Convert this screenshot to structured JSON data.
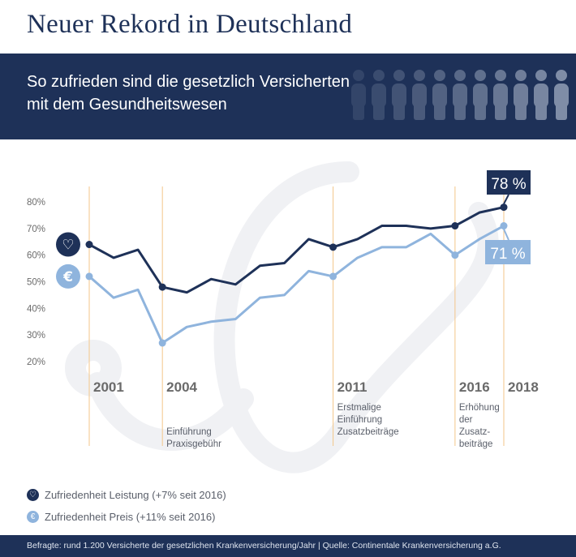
{
  "title": "Neuer Rekord in Deutschland",
  "subtitle": {
    "line1": "So zufrieden sind die gesetzlich Versicherten",
    "line2": "mit dem Gesundheitswesen"
  },
  "colors": {
    "navy": "#1e3158",
    "light_blue": "#8fb4dd",
    "marker": "#f3c68a",
    "axis_text": "#6b6b6b",
    "year_text": "#6a6a6a"
  },
  "chart_data": {
    "type": "line",
    "x": [
      2001,
      2002,
      2003,
      2004,
      2005,
      2006,
      2007,
      2008,
      2009,
      2010,
      2011,
      2012,
      2013,
      2014,
      2015,
      2016,
      2017,
      2018
    ],
    "series": [
      {
        "name": "Zufriedenheit Leistung (+7% seit 2016)",
        "icon": "heart-icon",
        "color": "#1e3158",
        "values": [
          64,
          59,
          62,
          48,
          46,
          51,
          49,
          56,
          57,
          66,
          63,
          66,
          71,
          71,
          70,
          71,
          76,
          78
        ]
      },
      {
        "name": "Zufriedenheit Preis (+11% seit 2016)",
        "icon": "euro-icon",
        "color": "#8fb4dd",
        "values": [
          52,
          44,
          47,
          27,
          33,
          35,
          36,
          44,
          45,
          54,
          52,
          59,
          63,
          63,
          68,
          60,
          66,
          71
        ]
      }
    ],
    "y_ticks": [
      "80%",
      "70%",
      "60%",
      "50%",
      "40%",
      "30%",
      "20%"
    ],
    "ylim": [
      20,
      80
    ],
    "markers": [
      {
        "year": 2001,
        "label": "2001",
        "note": []
      },
      {
        "year": 2004,
        "label": "2004",
        "note": [
          "Einführung",
          "Praxisgebühr"
        ]
      },
      {
        "year": 2011,
        "label": "2011",
        "note": [
          "Erstmalige",
          "Einführung",
          "Zusatzbeiträge"
        ]
      },
      {
        "year": 2016,
        "label": "2016",
        "note": [
          "Erhöhung",
          "der",
          "Zusatz-",
          "beiträge"
        ]
      },
      {
        "year": 2018,
        "label": "2018",
        "note": []
      }
    ],
    "highlighted_points": [
      {
        "series": 0,
        "years": [
          2001,
          2004,
          2011,
          2016,
          2018
        ]
      },
      {
        "series": 1,
        "years": [
          2001,
          2004,
          2011,
          2016,
          2018
        ]
      }
    ],
    "callouts": {
      "leistung": "78 %",
      "preis": "71 %"
    }
  },
  "legend": {
    "leistung": "Zufriedenheit Leistung (+7% seit 2016)",
    "preis": "Zufriedenheit Preis (+11% seit 2016)"
  },
  "icon_glyphs": {
    "euro": "€",
    "heart": "♡"
  },
  "footer": "Befragte: rund 1.200 Versicherte der gesetzlichen Krankenversicherung/Jahr | Quelle: Continentale Krankenversicherung a.G."
}
